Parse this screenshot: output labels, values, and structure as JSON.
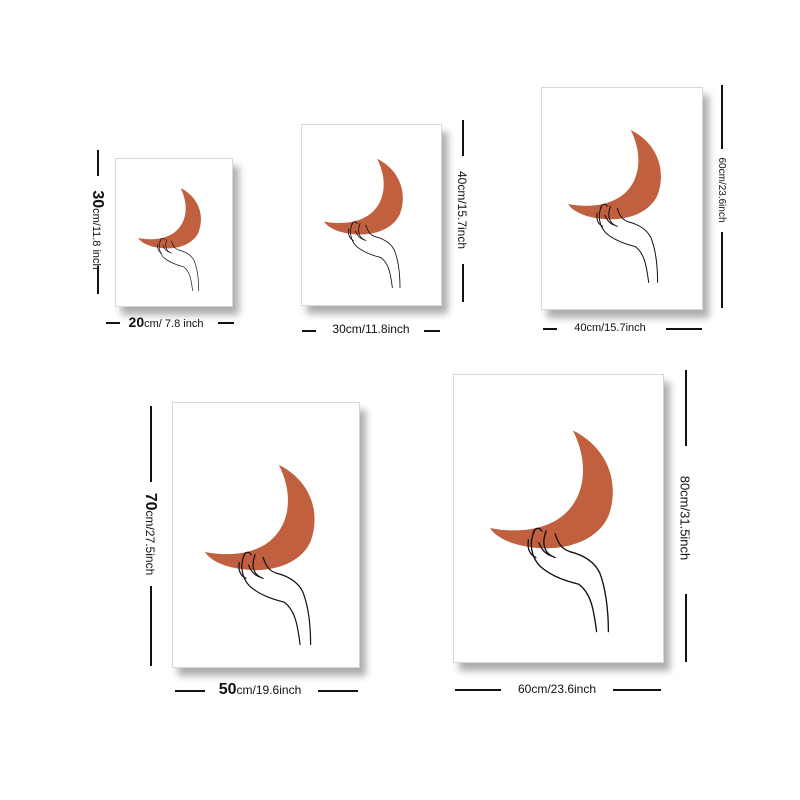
{
  "prints": [
    {
      "width": {
        "num": "20",
        "unit": "cm/ 7.8 inch"
      },
      "height": {
        "num": "30",
        "unit": "cm/11.8 inch"
      }
    },
    {
      "width": {
        "num": "30cm/11.8inch",
        "unit": ""
      },
      "height": {
        "num": "40cm/15.7inch",
        "unit": ""
      }
    },
    {
      "width": {
        "num": "40cm/15.7inch",
        "unit": ""
      },
      "height": {
        "num": "60cm/23.6inch",
        "unit": ""
      }
    },
    {
      "width": {
        "num": "50",
        "unit": "cm/19.6inch"
      },
      "height": {
        "num": "70",
        "unit": "cm/27.5inch"
      }
    },
    {
      "width": {
        "num": "60cm/23.6inch",
        "unit": ""
      },
      "height": {
        "num": "80cm/31.5inch",
        "unit": ""
      }
    }
  ],
  "colors": {
    "moon": "#c0603f",
    "line": "#111111",
    "background": "#ffffff"
  },
  "icon_names": [
    "crescent-moon-art",
    "hand-line-art"
  ]
}
